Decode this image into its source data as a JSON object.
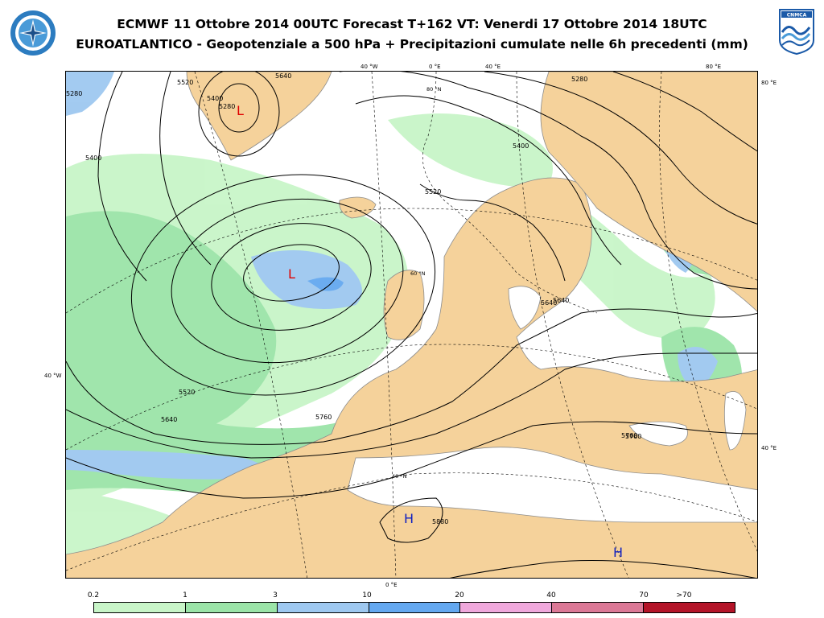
{
  "header": {
    "title_line1": "ECMWF 11 Ottobre 2014 00UTC Forecast T+162 VT: Venerdi 17 Ottobre 2014 18UTC",
    "title_line2": "EUROATLANTICO - Geopotenziale a 500 hPa + Precipitazioni cumulate nelle 6h precedenti (mm)"
  },
  "logos": {
    "left_icon": "meteorological-service-emblem",
    "right_icon": "cnmca-logo",
    "right_text": "CNMCA"
  },
  "graticule_labels": {
    "top_40w": "40 °W",
    "top_0e": "0 °E",
    "top_40e": "40 °E",
    "top_80e": "80 °E",
    "right_80e": "80 °E",
    "right_40e": "40 °E",
    "left_40w": "40 °W",
    "bottom_0e": "0 °E",
    "lat_80n": "80 °N",
    "lat_60n": "60 °N",
    "lat_40n": "40 °N"
  },
  "contour_labels": {
    "c1": "5520",
    "c2": "5400",
    "c3": "5280",
    "c4": "5400",
    "c5": "5520",
    "c6": "5640",
    "c7": "5640",
    "c8": "5760",
    "c9": "5760",
    "c10": "5880",
    "c11": "5640",
    "c12": "5520",
    "c13": "5760",
    "c14": "5400",
    "c15": "5280",
    "c16": "5640",
    "c17": "5280"
  },
  "pressure_centers": {
    "low_greenland": "L",
    "low_atlantic": "L",
    "high_nafrica": "H",
    "high_east": "H"
  },
  "legend": {
    "ticks": [
      "0.2",
      "1",
      "3",
      "10",
      "20",
      "40",
      "70",
      ">70"
    ],
    "colors": [
      "#c8f5c8",
      "#9be4a8",
      "#9ec8f0",
      "#64a8f0",
      "#f0a8dc",
      "#dc7896",
      "#b41428"
    ]
  },
  "colors": {
    "land": "#f5d29b",
    "sea": "#ffffff",
    "coast": "#8c8c8c",
    "low_label": "#e00000",
    "high_label": "#1020c0"
  }
}
